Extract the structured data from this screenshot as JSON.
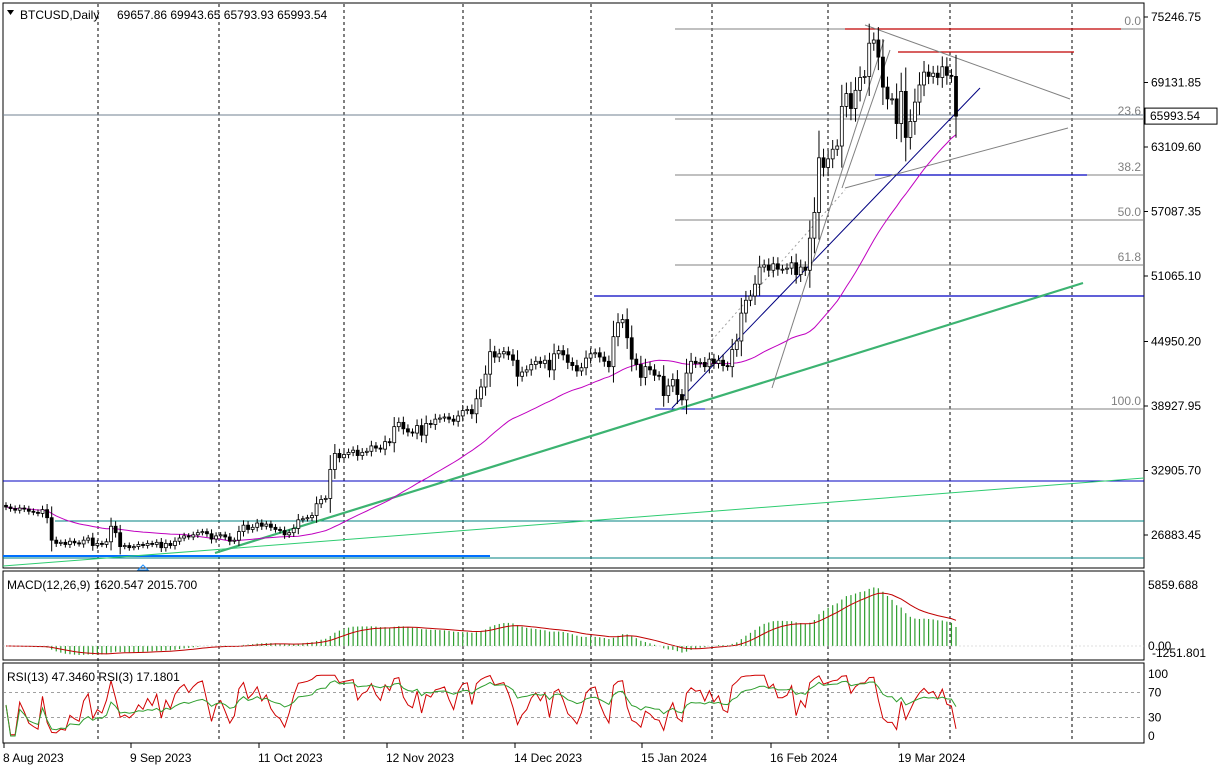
{
  "header": {
    "symbol_label": "BTCUSD,Daily",
    "ohlc_label": "69657.86 69943.65 65793.93 65993.54"
  },
  "price_axis": {
    "ticks": [
      "75246.75",
      "69131.85",
      "63109.60",
      "57087.35",
      "51065.10",
      "44950.20",
      "38927.95",
      "32905.70",
      "26883.45"
    ],
    "current_price": "65993.54",
    "current_price_color": "#000000"
  },
  "time_axis": {
    "labels": [
      "8 Aug 2023",
      "9 Sep 2023",
      "11 Oct 2023",
      "12 Nov 2023",
      "14 Dec 2023",
      "15 Jan 2024",
      "16 Feb 2024",
      "19 Mar 2024"
    ]
  },
  "fibonacci": {
    "levels": [
      "0.0",
      "23.6",
      "38.2",
      "50.0",
      "61.8",
      "100.0"
    ],
    "color": "#808080"
  },
  "macd": {
    "label": "MACD(12,26,9) 1620.547 2015.700",
    "axis_top": "5859.688",
    "axis_zero": "0.00",
    "axis_bottom": "-1251.801",
    "hist_color": "#2e9e2e",
    "signal_color": "#c00000"
  },
  "rsi": {
    "label": "RSI(13) 47.3460 RSI(3) 17.1801",
    "levels": [
      "100",
      "70",
      "30",
      "0"
    ],
    "rsi13_color": "#2e9e2e",
    "rsi3_color": "#d00000"
  },
  "chart_data": {
    "type": "candlestick",
    "symbol": "BTCUSD",
    "timeframe": "Daily",
    "ylim": [
      25000,
      76500
    ],
    "moving_average_color": "#c000c0",
    "closes": [
      29500,
      29350,
      29200,
      29400,
      29300,
      29100,
      29000,
      28900,
      29250,
      28500,
      26400,
      26100,
      26200,
      26000,
      26300,
      26150,
      26050,
      26400,
      26600,
      25900,
      26100,
      26000,
      26250,
      27700,
      27100,
      25800,
      25900,
      25700,
      25800,
      26000,
      25900,
      26100,
      26000,
      26200,
      25700,
      26100,
      25900,
      26300,
      26600,
      26800,
      26700,
      26900,
      27100,
      27200,
      27000,
      26500,
      26800,
      26900,
      26700,
      26300,
      26400,
      27200,
      27800,
      27400,
      27600,
      28000,
      27700,
      27900,
      27600,
      27400,
      27300,
      26900,
      27100,
      27500,
      28300,
      28400,
      28500,
      28700,
      29800,
      30200,
      30300,
      33000,
      34500,
      34100,
      34400,
      34600,
      34800,
      34300,
      34600,
      34700,
      35200,
      35000,
      34900,
      35600,
      35500,
      37000,
      37400,
      36800,
      36500,
      36400,
      37100,
      36200,
      37300,
      37200,
      37700,
      37800,
      37900,
      37700,
      37500,
      38000,
      38500,
      38600,
      38200,
      39600,
      40700,
      41900,
      44000,
      43500,
      43800,
      44000,
      43700,
      43200,
      41700,
      42100,
      42300,
      42800,
      43100,
      42900,
      43200,
      42300,
      43800,
      44100,
      43700,
      43000,
      42700,
      42200,
      42500,
      43400,
      43800,
      43900,
      43500,
      43100,
      42600,
      45400,
      46700,
      47000,
      45300,
      43300,
      42800,
      41600,
      42600,
      42300,
      41800,
      41700,
      39900,
      40800,
      41400,
      40000,
      39500,
      42000,
      43100,
      42900,
      43000,
      42600,
      43300,
      42900,
      43200,
      42700,
      42600,
      44200,
      45000,
      47600,
      48800,
      49200,
      50300,
      51900,
      52100,
      51600,
      52200,
      51700,
      51700,
      51800,
      52300,
      51200,
      51900,
      51600,
      54600,
      57000,
      62100,
      61200,
      62000,
      62900,
      63200,
      66900,
      68100,
      66700,
      68400,
      69600,
      69700,
      72800,
      73100,
      71500,
      68700,
      67600,
      67600,
      65300,
      68300,
      64000,
      65500,
      67300,
      68900,
      70100,
      69700,
      70000,
      69600,
      70600,
      69800,
      69700,
      65990
    ],
    "x_axis_labels": [
      "8 Aug 2023",
      "9 Sep 2023",
      "11 Oct 2023",
      "12 Nov 2023",
      "14 Dec 2023",
      "15 Jan 2024",
      "16 Feb 2024",
      "19 Mar 2024"
    ],
    "last_ohlc": {
      "open": 69657.86,
      "high": 69943.65,
      "low": 65793.93,
      "close": 65993.54
    }
  }
}
